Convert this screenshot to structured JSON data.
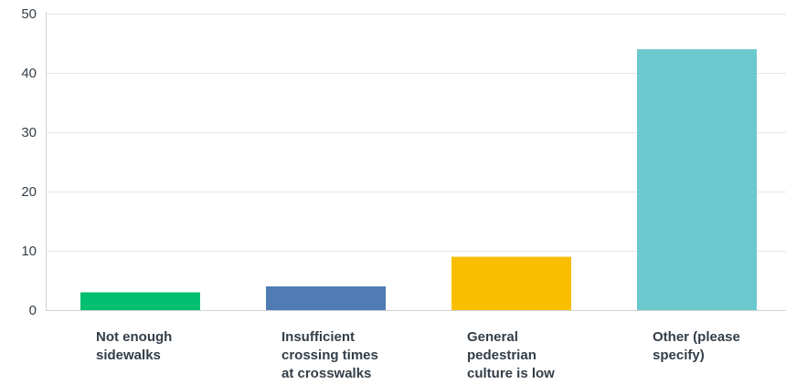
{
  "chart_data": {
    "type": "bar",
    "categories": [
      "Not enough sidewalks",
      "Insufficient crossing times at crosswalks",
      "General pedestrian culture is low",
      "Other (please specify)"
    ],
    "category_label_lines": [
      [
        "Not enough",
        "sidewalks"
      ],
      [
        "Insufficient",
        "crossing times",
        "at crosswalks"
      ],
      [
        "General",
        "pedestrian",
        "culture is low"
      ],
      [
        "Other (please",
        "specify)"
      ]
    ],
    "values": [
      3,
      4,
      9,
      44
    ],
    "ylim": [
      0,
      50
    ],
    "yticks": [
      0,
      10,
      20,
      30,
      40,
      50
    ],
    "title": "",
    "xlabel": "",
    "ylabel": "",
    "grid": true,
    "legend": "none",
    "colors": [
      "#00bf6f",
      "#507cb6",
      "#f9be00",
      "#6bc8cd"
    ],
    "grid_color": "#e5e5e5",
    "axis_color": "#d0d2d3"
  }
}
